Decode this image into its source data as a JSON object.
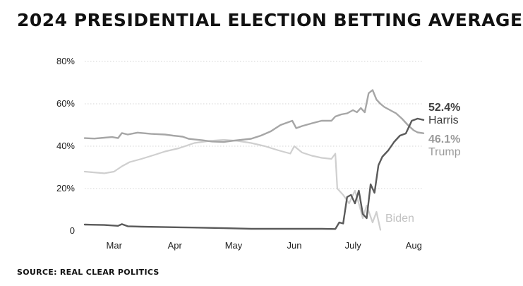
{
  "chart_data": {
    "type": "line",
    "title": "2024 PRESIDENTIAL ELECTION BETTING AVERAGE",
    "source": "SOURCE: REAL CLEAR POLITICS",
    "x_tick_labels": [
      "Mar",
      "Apr",
      "May",
      "Jun",
      "July",
      "Aug"
    ],
    "x_ticks": [
      "2024-03-01",
      "2024-04-01",
      "2024-05-01",
      "2024-06-01",
      "2024-07-01",
      "2024-08-01"
    ],
    "x_range": [
      "2024-02-20",
      "2024-08-11"
    ],
    "y_ticks": [
      0,
      20,
      40,
      60,
      80
    ],
    "y_tick_labels": [
      "0",
      "20%",
      "40%",
      "60%",
      "80%"
    ],
    "ylim": [
      0,
      80
    ],
    "grid": "horizontal",
    "series": [
      {
        "name": "Trump",
        "end_label": "46.1%",
        "color": "#a6a6a6",
        "points": [
          [
            "2024-02-20",
            43.8
          ],
          [
            "2024-02-25",
            43.6
          ],
          [
            "2024-03-01",
            44.0
          ],
          [
            "2024-03-05",
            44.3
          ],
          [
            "2024-03-08",
            43.8
          ],
          [
            "2024-03-10",
            46.2
          ],
          [
            "2024-03-13",
            45.5
          ],
          [
            "2024-03-18",
            46.4
          ],
          [
            "2024-03-25",
            45.8
          ],
          [
            "2024-04-01",
            45.5
          ],
          [
            "2024-04-05",
            45.0
          ],
          [
            "2024-04-10",
            44.5
          ],
          [
            "2024-04-13",
            43.5
          ],
          [
            "2024-04-16",
            43.2
          ],
          [
            "2024-04-20",
            42.8
          ],
          [
            "2024-04-25",
            42.2
          ],
          [
            "2024-05-01",
            42.0
          ],
          [
            "2024-05-05",
            42.5
          ],
          [
            "2024-05-10",
            43.0
          ],
          [
            "2024-05-15",
            43.5
          ],
          [
            "2024-05-20",
            45.0
          ],
          [
            "2024-05-25",
            47.0
          ],
          [
            "2024-05-30",
            50.0
          ],
          [
            "2024-06-05",
            52.0
          ],
          [
            "2024-06-07",
            48.5
          ],
          [
            "2024-06-10",
            49.5
          ],
          [
            "2024-06-15",
            50.8
          ],
          [
            "2024-06-20",
            52.0
          ],
          [
            "2024-06-25",
            52.0
          ],
          [
            "2024-06-27",
            54.0
          ],
          [
            "2024-06-30",
            55.0
          ],
          [
            "2024-07-03",
            55.5
          ],
          [
            "2024-07-06",
            57.0
          ],
          [
            "2024-07-08",
            56.0
          ],
          [
            "2024-07-10",
            58.0
          ],
          [
            "2024-07-12",
            56.0
          ],
          [
            "2024-07-14",
            65.0
          ],
          [
            "2024-07-16",
            66.5
          ],
          [
            "2024-07-18",
            62.0
          ],
          [
            "2024-07-20",
            60.0
          ],
          [
            "2024-07-22",
            58.5
          ],
          [
            "2024-07-25",
            57.0
          ],
          [
            "2024-07-28",
            55.5
          ],
          [
            "2024-07-31",
            53.0
          ],
          [
            "2024-08-03",
            50.0
          ],
          [
            "2024-08-06",
            47.5
          ],
          [
            "2024-08-08",
            46.5
          ],
          [
            "2024-08-11",
            46.1
          ]
        ]
      },
      {
        "name": "Harris",
        "end_label": "52.4%",
        "color": "#5a5a5a",
        "points": [
          [
            "2024-02-20",
            3.0
          ],
          [
            "2024-03-01",
            2.8
          ],
          [
            "2024-03-08",
            2.4
          ],
          [
            "2024-03-10",
            3.2
          ],
          [
            "2024-03-13",
            2.2
          ],
          [
            "2024-03-20",
            2.0
          ],
          [
            "2024-04-01",
            1.8
          ],
          [
            "2024-04-15",
            1.6
          ],
          [
            "2024-05-01",
            1.3
          ],
          [
            "2024-05-15",
            1.0
          ],
          [
            "2024-06-01",
            1.0
          ],
          [
            "2024-06-20",
            1.0
          ],
          [
            "2024-06-27",
            0.9
          ],
          [
            "2024-06-29",
            4.0
          ],
          [
            "2024-07-01",
            3.5
          ],
          [
            "2024-07-03",
            16.0
          ],
          [
            "2024-07-05",
            17.0
          ],
          [
            "2024-07-07",
            13.0
          ],
          [
            "2024-07-09",
            19.0
          ],
          [
            "2024-07-11",
            8.0
          ],
          [
            "2024-07-13",
            6.0
          ],
          [
            "2024-07-15",
            22.0
          ],
          [
            "2024-07-17",
            18.0
          ],
          [
            "2024-07-19",
            31.0
          ],
          [
            "2024-07-21",
            35.0
          ],
          [
            "2024-07-24",
            38.0
          ],
          [
            "2024-07-27",
            42.0
          ],
          [
            "2024-07-30",
            45.0
          ],
          [
            "2024-08-02",
            46.0
          ],
          [
            "2024-08-05",
            52.0
          ],
          [
            "2024-08-08",
            53.0
          ],
          [
            "2024-08-11",
            52.4
          ]
        ]
      },
      {
        "name": "Biden",
        "color": "#cfcfcf",
        "points": [
          [
            "2024-02-20",
            28.0
          ],
          [
            "2024-03-01",
            27.2
          ],
          [
            "2024-03-06",
            28.0
          ],
          [
            "2024-03-10",
            30.5
          ],
          [
            "2024-03-14",
            32.5
          ],
          [
            "2024-03-20",
            34.0
          ],
          [
            "2024-03-27",
            36.0
          ],
          [
            "2024-04-01",
            37.5
          ],
          [
            "2024-04-08",
            39.0
          ],
          [
            "2024-04-16",
            41.5
          ],
          [
            "2024-04-24",
            42.5
          ],
          [
            "2024-05-01",
            43.0
          ],
          [
            "2024-05-08",
            42.5
          ],
          [
            "2024-05-15",
            41.5
          ],
          [
            "2024-05-22",
            40.0
          ],
          [
            "2024-05-29",
            38.0
          ],
          [
            "2024-06-04",
            36.5
          ],
          [
            "2024-06-06",
            40.0
          ],
          [
            "2024-06-10",
            37.0
          ],
          [
            "2024-06-15",
            35.5
          ],
          [
            "2024-06-20",
            34.5
          ],
          [
            "2024-06-25",
            34.0
          ],
          [
            "2024-06-27",
            36.5
          ],
          [
            "2024-06-28",
            20.0
          ],
          [
            "2024-07-01",
            17.0
          ],
          [
            "2024-07-04",
            13.0
          ],
          [
            "2024-07-07",
            19.0
          ],
          [
            "2024-07-09",
            13.0
          ],
          [
            "2024-07-11",
            6.0
          ],
          [
            "2024-07-13",
            12.0
          ],
          [
            "2024-07-16",
            4.0
          ],
          [
            "2024-07-18",
            9.0
          ],
          [
            "2024-07-20",
            0.5
          ]
        ]
      }
    ]
  }
}
